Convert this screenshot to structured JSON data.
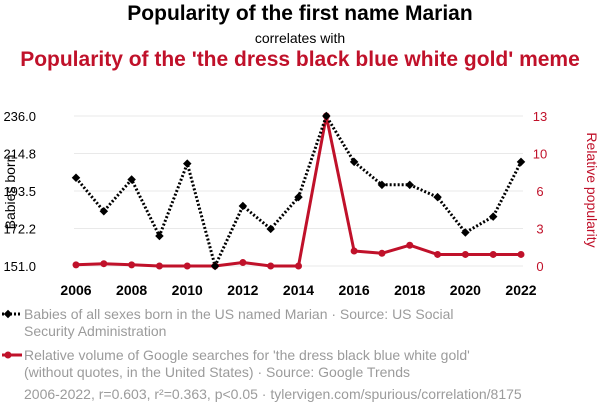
{
  "chart_data": {
    "type": "line",
    "title": "Popularity of the first name Marian",
    "subtitle": "correlates with",
    "title2": "Popularity of the 'the dress black blue white gold' meme",
    "x": [
      2006,
      2007,
      2008,
      2009,
      2010,
      2011,
      2012,
      2013,
      2014,
      2015,
      2016,
      2017,
      2018,
      2019,
      2020,
      2021,
      2022
    ],
    "x_ticks": [
      "2006",
      "2008",
      "2010",
      "2012",
      "2014",
      "2016",
      "2018",
      "2020",
      "2022"
    ],
    "ylabel_left": "Babies born",
    "ylabel_right": "Relative popularity",
    "y_left_ticks": [
      "236.0",
      "214.8",
      "193.5",
      "172.2",
      "151.0"
    ],
    "y_left_range": [
      151.0,
      236.0
    ],
    "y_right_ticks": [
      "13",
      "10",
      "6",
      "3",
      "0"
    ],
    "y_right_range": [
      0,
      13
    ],
    "grid": true,
    "series": [
      {
        "name": "Babies of all sexes born in the US named Marian · Source: US Social Security Administration",
        "axis": "left",
        "color": "#000000",
        "style": "dotted",
        "values": [
          201,
          182,
          200,
          168,
          209,
          151,
          185,
          172,
          190,
          236,
          210,
          197,
          197,
          190,
          170,
          179,
          210
        ]
      },
      {
        "name": "Relative volume of Google searches for 'the dress black blue white gold' (without quotes, in the United States) · Source: Google Trends",
        "axis": "right",
        "color": "#c0112a",
        "style": "solid",
        "values": [
          0.1,
          0.2,
          0.1,
          0,
          0,
          0,
          0.3,
          0,
          0,
          13,
          1.3,
          1.1,
          1.8,
          1,
          1,
          1,
          1
        ]
      }
    ]
  },
  "footer": "2006-2022, r=0.603, r²=0.363, p<0.05 · tylervigen.com/spurious/correlation/8175"
}
